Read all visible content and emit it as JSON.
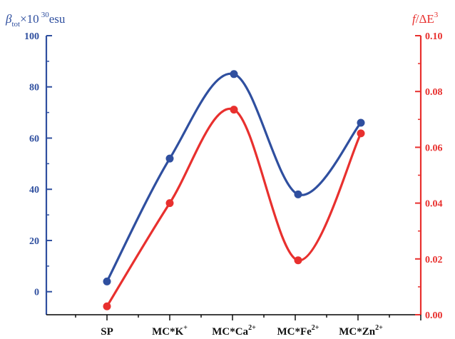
{
  "chart_data": {
    "type": "line",
    "categories": [
      "SP",
      "MC*K",
      "MC*Ca",
      "MC*Fe",
      "MC*Zn"
    ],
    "category_superscripts": [
      "",
      "+",
      "2+",
      "2+",
      "2+"
    ],
    "left_axis": {
      "label_parts": {
        "symbol": "β",
        "subscript": "tot",
        "times": "×10",
        "exponent": "30",
        "unit": "esu"
      },
      "ylim": [
        -9,
        100
      ],
      "ticks": [
        0,
        20,
        40,
        60,
        80,
        100
      ],
      "tick_labels": [
        "0",
        "20",
        "40",
        "60",
        "80",
        "100"
      ],
      "color": "#2f4f9f"
    },
    "right_axis": {
      "label_parts": {
        "italic": "f",
        "rest": "/ΔE",
        "exponent": "3"
      },
      "ylim": [
        0.0,
        0.1
      ],
      "ticks": [
        0.0,
        0.02,
        0.04,
        0.06,
        0.08,
        0.1
      ],
      "tick_labels": [
        "0.00",
        "0.02",
        "0.04",
        "0.06",
        "0.08",
        "0.10"
      ],
      "color": "#e8302e"
    },
    "series": [
      {
        "values": [
          4,
          52,
          85,
          38,
          66
        ],
        "axis": "left",
        "color": "#2f4f9f"
      },
      {
        "values": [
          0.003,
          0.04,
          0.0735,
          0.0195,
          0.065
        ],
        "axis": "right",
        "color": "#e8302e"
      }
    ],
    "grid": false,
    "legend": "none"
  }
}
